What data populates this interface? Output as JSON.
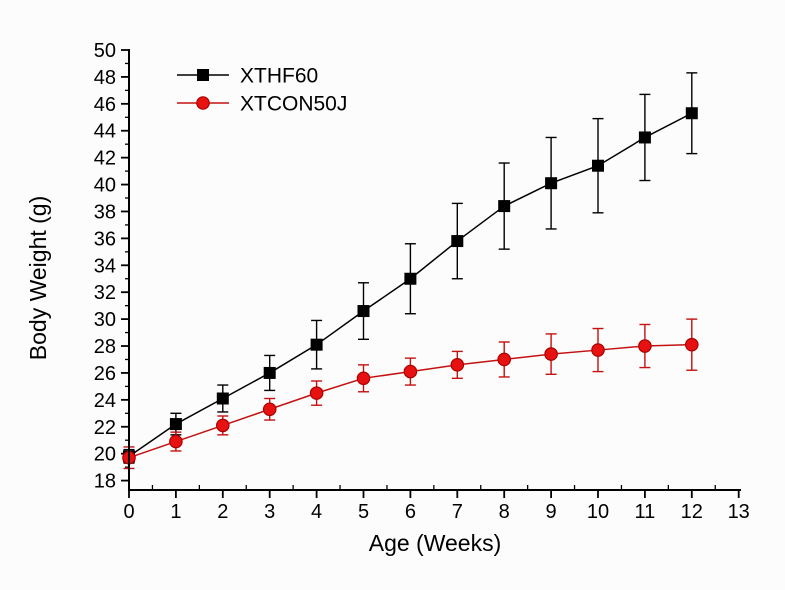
{
  "figure": {
    "background_color": "#fcfcfc",
    "axis_color": "#000000"
  },
  "chart_data": {
    "type": "line",
    "title": "",
    "xlabel": "Age (Weeks)",
    "ylabel": "Body Weight (g)",
    "xlim": [
      0,
      13
    ],
    "ylim": [
      17.3,
      50
    ],
    "x_major_tick_step": 1,
    "x_minor_tick_step": 0.5,
    "y_major_tick_step": 2,
    "y_minor_tick_step": 1,
    "y_tick_labels": [
      18,
      20,
      22,
      24,
      26,
      28,
      30,
      32,
      34,
      36,
      38,
      40,
      42,
      44,
      46,
      48,
      50
    ],
    "x_tick_labels": [
      0,
      1,
      2,
      3,
      4,
      5,
      6,
      7,
      8,
      9,
      10,
      11,
      12,
      13
    ],
    "grid": false,
    "legend_position": "top-left-inside",
    "x": [
      0,
      1,
      2,
      3,
      4,
      5,
      6,
      7,
      8,
      9,
      10,
      11,
      12
    ],
    "series": [
      {
        "name": "XTHF60",
        "marker": "square",
        "line_color": "#000000",
        "marker_fill": "#000000",
        "marker_stroke": "#000000",
        "values": [
          19.8,
          22.2,
          24.1,
          26.0,
          28.1,
          30.6,
          33.0,
          35.8,
          38.4,
          40.1,
          41.4,
          43.5,
          45.3
        ],
        "errors": [
          0.5,
          0.8,
          1.0,
          1.3,
          1.8,
          2.1,
          2.6,
          2.8,
          3.2,
          3.4,
          3.5,
          3.2,
          3.0
        ]
      },
      {
        "name": "XTCON50J",
        "marker": "circle",
        "line_color": "#c41111",
        "marker_fill": "#e81111",
        "marker_stroke": "#aa0000",
        "values": [
          19.7,
          20.9,
          22.1,
          23.3,
          24.5,
          25.6,
          26.1,
          26.6,
          27.0,
          27.4,
          27.7,
          28.0,
          28.1
        ],
        "errors": [
          0.8,
          0.7,
          0.7,
          0.8,
          0.9,
          1.0,
          1.0,
          1.0,
          1.3,
          1.5,
          1.6,
          1.6,
          1.9
        ]
      }
    ]
  }
}
